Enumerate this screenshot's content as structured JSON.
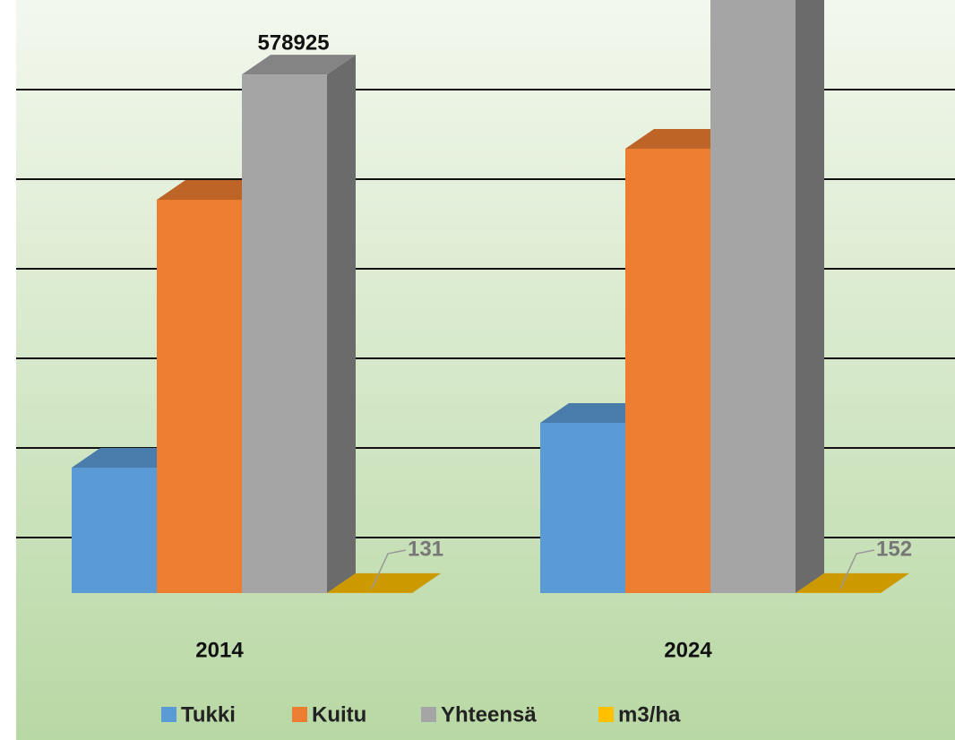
{
  "chart_data": {
    "type": "bar3d",
    "categories": [
      "2014",
      "2024"
    ],
    "series": [
      {
        "name": "Tukki",
        "color": "#5b9bd5",
        "values": [
          140000,
          190000
        ]
      },
      {
        "name": "Kuitu",
        "color": "#ed7d31",
        "values": [
          439000,
          496000
        ]
      },
      {
        "name": "Yhteensä",
        "color": "#a5a5a5",
        "values": [
          578925,
          685695
        ],
        "data_labels": true
      },
      {
        "name": "m3/ha",
        "color": "#ffc000",
        "values": [
          131,
          152
        ],
        "data_labels": true
      }
    ],
    "ylim": [
      0,
      800000
    ],
    "yticks": [
      100000,
      200000,
      300000,
      400000,
      500000,
      600000,
      700000,
      800000
    ],
    "grid": true,
    "legend": "bottom"
  }
}
